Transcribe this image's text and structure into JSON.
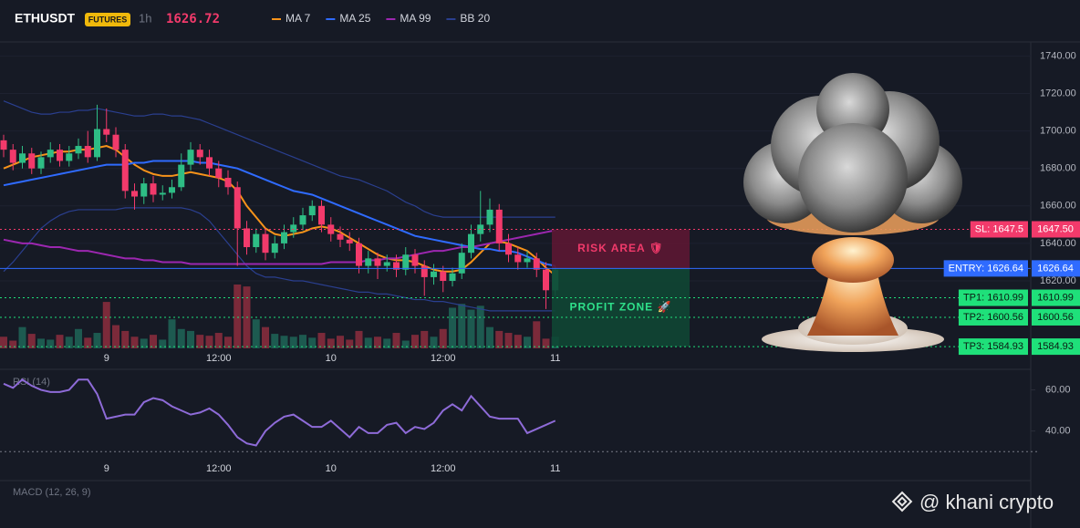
{
  "header": {
    "symbol": "ETHUSDT",
    "market": "FUTURES",
    "interval": "1h",
    "price": 1626.72
  },
  "watermark": "@ khani crypto",
  "chart_data": [
    {
      "type": "candlestick",
      "categories": [
        null,
        null,
        null,
        null,
        null,
        null,
        null,
        null,
        null,
        null,
        null,
        "9",
        null,
        null,
        null,
        null,
        null,
        null,
        null,
        null,
        null,
        null,
        null,
        "12:00",
        null,
        null,
        null,
        null,
        null,
        null,
        null,
        null,
        null,
        null,
        null,
        "10",
        null,
        null,
        null,
        null,
        null,
        null,
        null,
        null,
        null,
        null,
        null,
        "12:00",
        null,
        null,
        null,
        null,
        null,
        null,
        null,
        null,
        null,
        null,
        null,
        "11"
      ],
      "open": [
        1695,
        1690,
        1683,
        1688,
        1680,
        1686,
        1690,
        1684,
        1688,
        1692,
        1686,
        1701,
        1698,
        1690,
        1668,
        1665,
        1672,
        1666,
        1667,
        1670,
        1682,
        1690,
        1686,
        1680,
        1675,
        1670,
        1648,
        1638,
        1645,
        1635,
        1640,
        1646,
        1650,
        1655,
        1660,
        1650,
        1645,
        1642,
        1640,
        1628,
        1632,
        1628,
        1630,
        1626,
        1634,
        1628,
        1622,
        1625,
        1620,
        1624,
        1635,
        1645,
        1650,
        1658,
        1640,
        1634,
        1630,
        1632,
        1626,
        1615
      ],
      "high": [
        1698,
        1693,
        1692,
        1691,
        1689,
        1694,
        1693,
        1692,
        1696,
        1700,
        1714,
        1712,
        1702,
        1693,
        1672,
        1675,
        1676,
        1671,
        1674,
        1688,
        1694,
        1693,
        1690,
        1684,
        1679,
        1673,
        1652,
        1648,
        1648,
        1644,
        1650,
        1654,
        1659,
        1663,
        1663,
        1654,
        1649,
        1646,
        1643,
        1636,
        1635,
        1634,
        1634,
        1638,
        1637,
        1631,
        1629,
        1628,
        1627,
        1640,
        1650,
        1668,
        1664,
        1661,
        1645,
        1638,
        1636,
        1635,
        1630,
        1628
      ],
      "low": [
        1686,
        1679,
        1680,
        1677,
        1677,
        1683,
        1681,
        1681,
        1685,
        1683,
        1684,
        1694,
        1686,
        1664,
        1658,
        1661,
        1662,
        1663,
        1664,
        1668,
        1679,
        1682,
        1676,
        1670,
        1666,
        1628,
        1634,
        1635,
        1631,
        1632,
        1637,
        1643,
        1647,
        1652,
        1646,
        1641,
        1638,
        1636,
        1624,
        1624,
        1621,
        1625,
        1622,
        1623,
        1624,
        1612,
        1618,
        1614,
        1617,
        1621,
        1632,
        1641,
        1646,
        1636,
        1630,
        1626,
        1627,
        1622,
        1605,
        1612
      ],
      "close": [
        1690,
        1683,
        1688,
        1680,
        1686,
        1690,
        1684,
        1688,
        1692,
        1686,
        1701,
        1698,
        1690,
        1668,
        1665,
        1672,
        1666,
        1667,
        1670,
        1682,
        1690,
        1686,
        1680,
        1675,
        1670,
        1648,
        1638,
        1645,
        1635,
        1640,
        1646,
        1650,
        1655,
        1660,
        1650,
        1645,
        1642,
        1640,
        1628,
        1632,
        1628,
        1630,
        1626,
        1634,
        1628,
        1622,
        1625,
        1620,
        1624,
        1635,
        1645,
        1650,
        1658,
        1640,
        1634,
        1630,
        1632,
        1626,
        1615,
        1626
      ],
      "volume": [
        12,
        8,
        22,
        15,
        10,
        9,
        14,
        12,
        20,
        11,
        16,
        48,
        24,
        18,
        12,
        10,
        14,
        9,
        30,
        20,
        18,
        14,
        13,
        16,
        12,
        66,
        64,
        30,
        22,
        15,
        13,
        12,
        14,
        11,
        16,
        10,
        13,
        9,
        18,
        11,
        12,
        10,
        16,
        8,
        14,
        18,
        12,
        20,
        42,
        46,
        40,
        44,
        22,
        18,
        16,
        14,
        12,
        28,
        10,
        12
      ],
      "up_color": "#2ebd85",
      "down_color": "#f23a6b",
      "volume_up_color": "#1d5a50",
      "volume_down_color": "#7b2a3a",
      "ylim": [
        1584,
        1747
      ],
      "yticks": [
        {
          "value": 1740,
          "label": "1740.00"
        },
        {
          "value": 1720,
          "label": "1720.00"
        },
        {
          "value": 1700,
          "label": "1700.00"
        },
        {
          "value": 1680,
          "label": "1680.00"
        },
        {
          "value": 1660,
          "label": "1660.00"
        },
        {
          "value": 1640,
          "label": "1640.00"
        },
        {
          "value": 1620,
          "label": "1620.00"
        }
      ],
      "grid": true,
      "series": [
        {
          "name": "MA 7",
          "color": "#f7931a",
          "values": [
            1680,
            1682,
            1684,
            1686,
            1687,
            1688,
            1689,
            1689,
            1690,
            1690,
            1691,
            1692,
            1690,
            1686,
            1682,
            1679,
            1677,
            1676,
            1676,
            1677,
            1678,
            1677,
            1676,
            1675,
            1673,
            1668,
            1660,
            1654,
            1648,
            1645,
            1644,
            1645,
            1646,
            1648,
            1649,
            1648,
            1646,
            1643,
            1640,
            1637,
            1634,
            1632,
            1631,
            1631,
            1630,
            1628,
            1626,
            1625,
            1625,
            1626,
            1630,
            1635,
            1640,
            1641,
            1640,
            1638,
            1636,
            1632,
            1627,
            1623
          ]
        },
        {
          "name": "MA 25",
          "color": "#2f6bff",
          "values": [
            1671,
            1672,
            1673,
            1674,
            1675,
            1676,
            1677,
            1678,
            1679,
            1680,
            1681,
            1682,
            1682,
            1682,
            1683,
            1683,
            1684,
            1684,
            1684,
            1684,
            1684,
            1683,
            1683,
            1682,
            1681,
            1680,
            1678,
            1676,
            1674,
            1672,
            1670,
            1668,
            1667,
            1666,
            1664,
            1662,
            1660,
            1658,
            1656,
            1654,
            1652,
            1650,
            1648,
            1646,
            1644,
            1643,
            1642,
            1641,
            1640,
            1639,
            1638,
            1637,
            1637,
            1636,
            1636,
            1635,
            1633,
            1631,
            1629,
            1628
          ]
        },
        {
          "name": "MA 99",
          "color": "#9c27b0",
          "values": [
            1642,
            1641,
            1640,
            1640,
            1639,
            1638,
            1638,
            1637,
            1636,
            1636,
            1635,
            1634,
            1633,
            1632,
            1632,
            1631,
            1631,
            1630,
            1630,
            1630,
            1629,
            1629,
            1629,
            1629,
            1629,
            1629,
            1629,
            1629,
            1629,
            1629,
            1629,
            1629,
            1629,
            1629,
            1629,
            1630,
            1630,
            1630,
            1630,
            1631,
            1631,
            1632,
            1632,
            1633,
            1634,
            1635,
            1636,
            1636,
            1637,
            1638,
            1638,
            1639,
            1640,
            1641,
            1642,
            1643,
            1644,
            1645,
            1646,
            1647
          ]
        }
      ],
      "bands": {
        "name": "BB 20",
        "color": "#2a3f8f",
        "upper": [
          1716,
          1714,
          1712,
          1710,
          1709,
          1709,
          1710,
          1710,
          1711,
          1711,
          1712,
          1711,
          1710,
          1709,
          1708,
          1708,
          1709,
          1709,
          1708,
          1708,
          1707,
          1706,
          1704,
          1702,
          1700,
          1698,
          1696,
          1694,
          1692,
          1690,
          1688,
          1686,
          1684,
          1682,
          1680,
          1678,
          1676,
          1675,
          1674,
          1672,
          1670,
          1668,
          1665,
          1662,
          1660,
          1657,
          1655,
          1654,
          1654,
          1654,
          1654,
          1654,
          1654,
          1654,
          1654,
          1654,
          1654,
          1654,
          1654,
          1654
        ],
        "lower": [
          1625,
          1630,
          1636,
          1642,
          1648,
          1652,
          1655,
          1657,
          1658,
          1658,
          1658,
          1658,
          1658,
          1659,
          1659,
          1659,
          1659,
          1659,
          1659,
          1659,
          1658,
          1656,
          1652,
          1646,
          1640,
          1634,
          1628,
          1624,
          1622,
          1622,
          1621,
          1620,
          1620,
          1619,
          1618,
          1617,
          1616,
          1615,
          1614,
          1614,
          1613,
          1613,
          1612,
          1611,
          1610,
          1610,
          1609,
          1609,
          1608,
          1607,
          1606,
          1605,
          1604,
          1604,
          1604,
          1604,
          1604,
          1604,
          1604,
          1604
        ]
      },
      "levels": [
        {
          "label": "SL: 1647.5",
          "value": 1647.5,
          "value_label": "1647.50",
          "color": "#f23a6b",
          "text_color": "#ffffff",
          "dashed": true
        },
        {
          "label": "ENTRY: 1626.64",
          "value": 1626.64,
          "value_label": "1626.64",
          "color": "#2f6bff",
          "text_color": "#ffffff",
          "dashed": false
        },
        {
          "label": "TP1: 1610.99",
          "value": 1610.99,
          "value_label": "1610.99",
          "color": "#1fe07a",
          "text_color": "#0b1a12",
          "dashed": true
        },
        {
          "label": "TP2: 1600.56",
          "value": 1600.56,
          "value_label": "1600.56",
          "color": "#1fe07a",
          "text_color": "#0b1a12",
          "dashed": true
        },
        {
          "label": "TP3: 1584.93",
          "value": 1584.93,
          "value_label": "1584.93",
          "color": "#1fe07a",
          "text_color": "#0b1a12",
          "dashed": true
        }
      ],
      "zones": [
        {
          "label": "RISK AREA 🛡",
          "color": "#5c1733",
          "text_color": "#f23a6b"
        },
        {
          "label": "PROFIT ZONE 🚀",
          "color": "#0f4634",
          "text_color": "#2ee08a"
        }
      ]
    },
    {
      "type": "line",
      "title": "RSI (14)",
      "categories": [
        null,
        null,
        null,
        null,
        null,
        null,
        null,
        null,
        null,
        null,
        null,
        "9",
        null,
        null,
        null,
        null,
        null,
        null,
        null,
        null,
        null,
        null,
        null,
        "12:00",
        null,
        null,
        null,
        null,
        null,
        null,
        null,
        null,
        null,
        null,
        null,
        "10",
        null,
        null,
        null,
        null,
        null,
        null,
        null,
        null,
        null,
        null,
        null,
        "12:00",
        null,
        null,
        null,
        null,
        null,
        null,
        null,
        null,
        null,
        null,
        null,
        "11"
      ],
      "series": [
        {
          "color": "#8e6bd8",
          "values": [
            63,
            61,
            65,
            62,
            60,
            59,
            59,
            60,
            65,
            65,
            58,
            46,
            47,
            48,
            48,
            54,
            56,
            55,
            52,
            50,
            48,
            49,
            51,
            48,
            43,
            37,
            34,
            33,
            40,
            44,
            47,
            48,
            45,
            42,
            42,
            45,
            41,
            37,
            42,
            39,
            39,
            43,
            44,
            39,
            42,
            41,
            44,
            50,
            53,
            50,
            57,
            52,
            47,
            46,
            46,
            46,
            39,
            41,
            43,
            45
          ]
        }
      ],
      "ylim": [
        27,
        70
      ],
      "yticks": [
        {
          "value": 60,
          "label": "60.00"
        },
        {
          "value": 40,
          "label": "40.00"
        }
      ],
      "hline": 30
    },
    {
      "type": "macd",
      "title": "MACD (12, 26, 9)"
    }
  ]
}
